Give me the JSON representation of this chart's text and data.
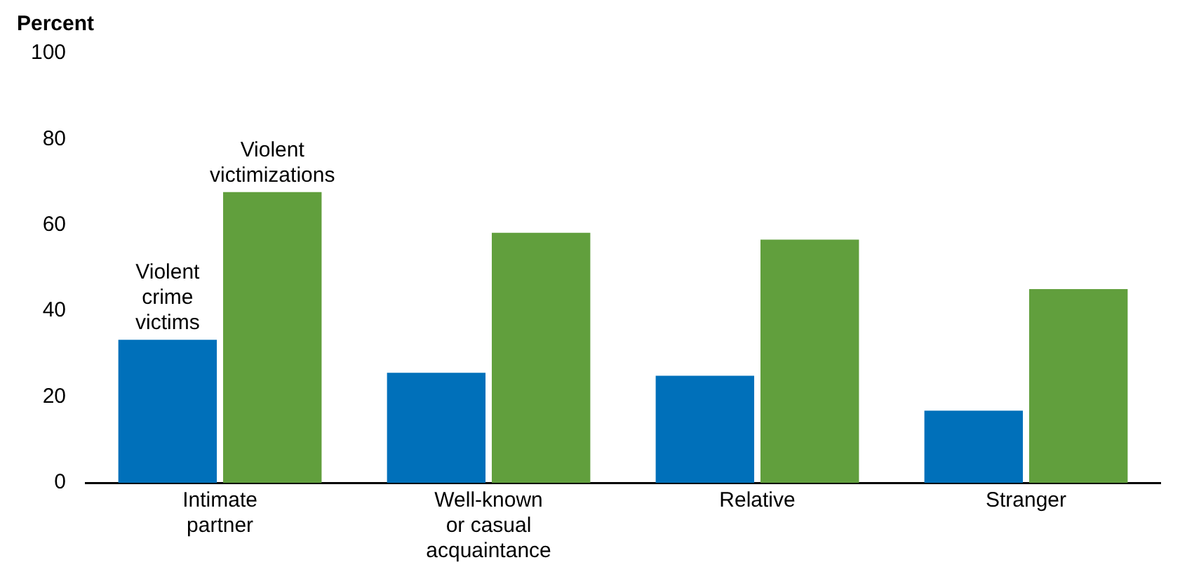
{
  "chart_data": {
    "type": "bar",
    "ylabel": "Percent",
    "categories": [
      "Intimate partner",
      "Well-known or casual acquaintance",
      "Relative",
      "Stranger"
    ],
    "series": [
      {
        "name": "Violent crime victims",
        "color": "#0070ba",
        "values": [
          33.3,
          25.6,
          24.9,
          16.8
        ]
      },
      {
        "name": "Violent victimizations",
        "color": "#619f3d",
        "values": [
          67.7,
          58.2,
          56.6,
          45.1
        ]
      }
    ],
    "ylim": [
      0,
      100
    ],
    "yticks": [
      0,
      20,
      40,
      60,
      80,
      100
    ],
    "grid": false,
    "legend": false
  }
}
